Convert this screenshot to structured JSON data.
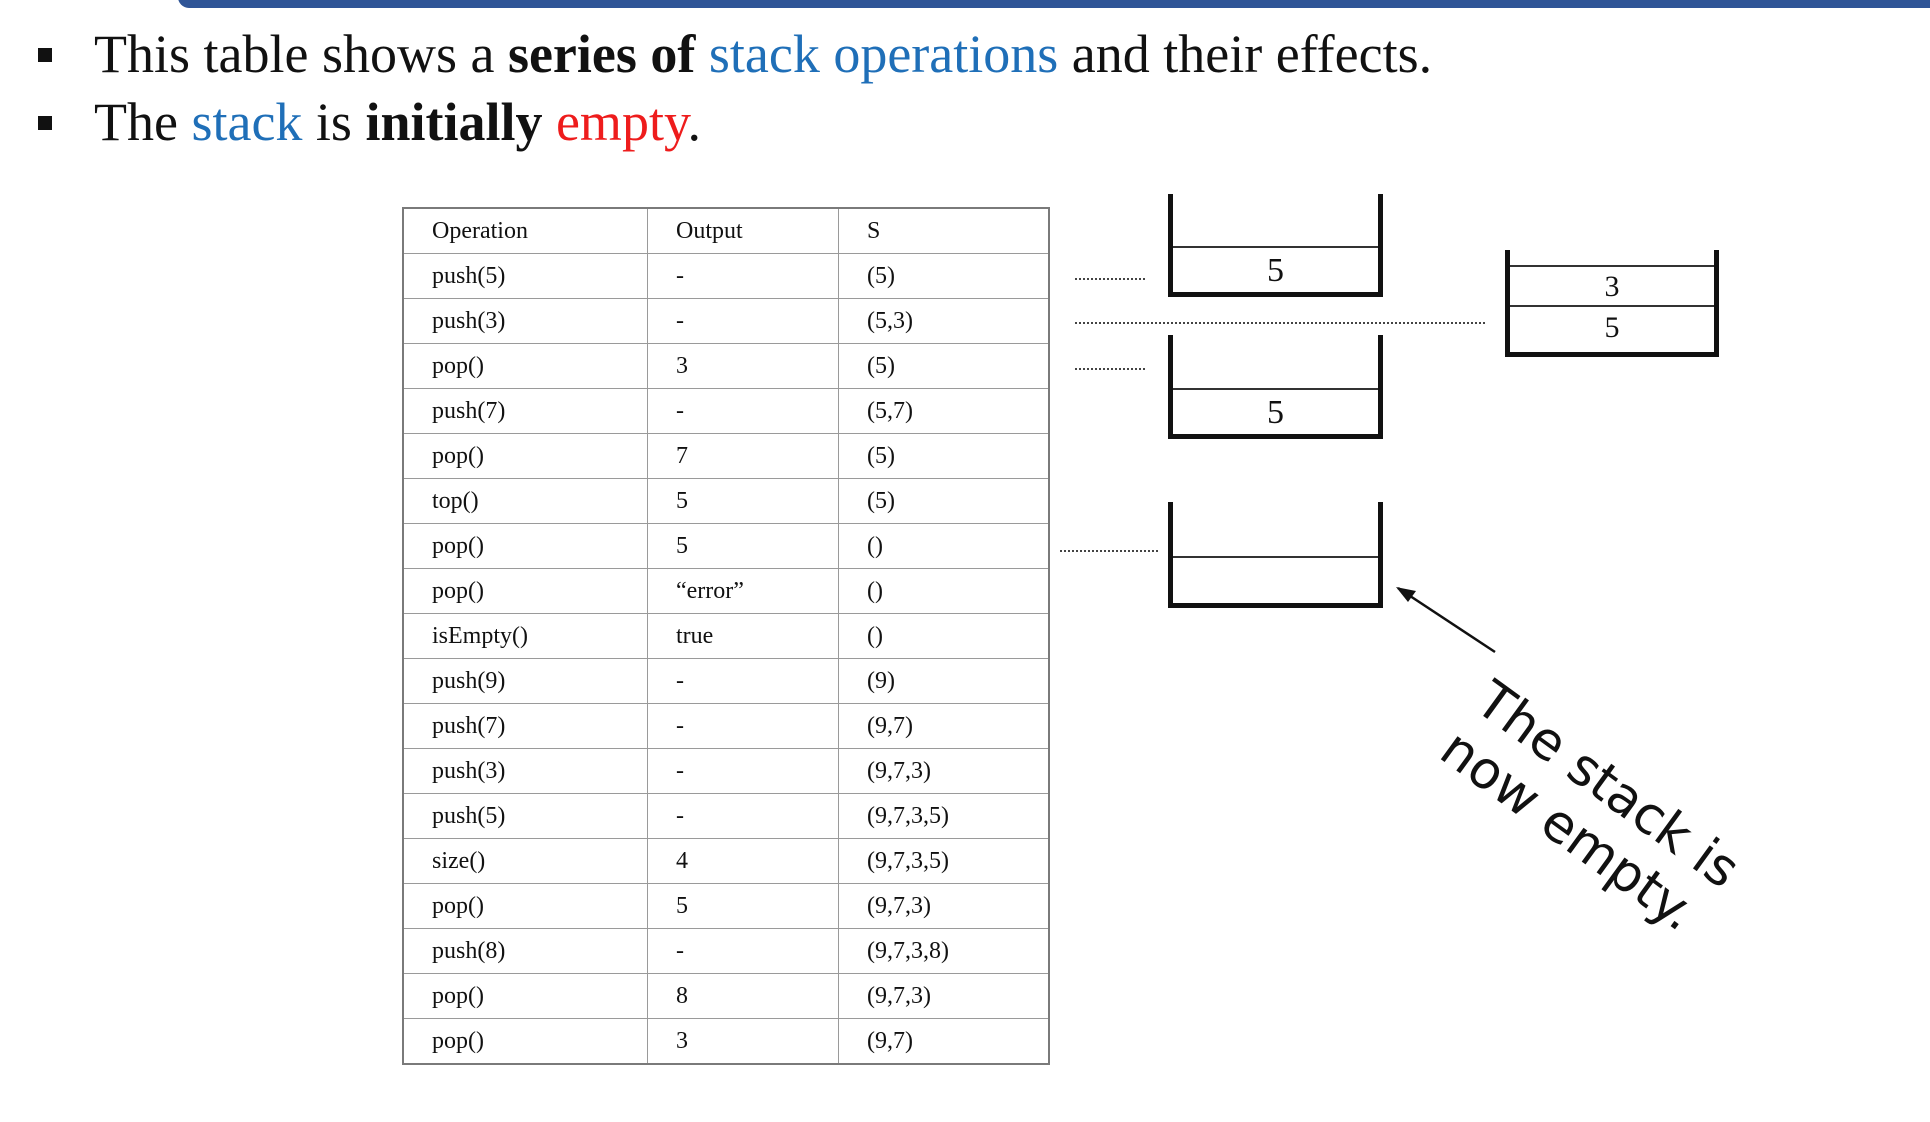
{
  "bullets": [
    {
      "parts": [
        {
          "text": "This table shows a ",
          "style": "plain"
        },
        {
          "text": "series of",
          "style": "bold"
        },
        {
          "text": " ",
          "style": "plain"
        },
        {
          "text": "stack operations",
          "style": "blue"
        },
        {
          "text": " and their effects.",
          "style": "plain"
        }
      ]
    },
    {
      "parts": [
        {
          "text": "The ",
          "style": "plain"
        },
        {
          "text": "stack",
          "style": "blue"
        },
        {
          "text": " is ",
          "style": "plain"
        },
        {
          "text": "initially",
          "style": "bold"
        },
        {
          "text": " ",
          "style": "plain"
        },
        {
          "text": "empty",
          "style": "red"
        },
        {
          "text": ".",
          "style": "plain"
        }
      ]
    }
  ],
  "table": {
    "headers": [
      "Operation",
      "Output",
      "S"
    ],
    "rows": [
      [
        "push(5)",
        "-",
        "(5)"
      ],
      [
        "push(3)",
        "-",
        "(5,3)"
      ],
      [
        "pop()",
        "3",
        "(5)"
      ],
      [
        "push(7)",
        "-",
        "(5,7)"
      ],
      [
        "pop()",
        "7",
        "(5)"
      ],
      [
        "top()",
        "5",
        "(5)"
      ],
      [
        "pop()",
        "5",
        "()"
      ],
      [
        "pop()",
        "“error”",
        "()"
      ],
      [
        "isEmpty()",
        "true",
        "()"
      ],
      [
        "push(9)",
        "-",
        "(9)"
      ],
      [
        "push(7)",
        "-",
        "(9,7)"
      ],
      [
        "push(3)",
        "-",
        "(9,7,3)"
      ],
      [
        "push(5)",
        "-",
        "(9,7,3,5)"
      ],
      [
        "size()",
        "4",
        "(9,7,3,5)"
      ],
      [
        "pop()",
        "5",
        "(9,7,3)"
      ],
      [
        "push(8)",
        "-",
        "(9,7,3,8)"
      ],
      [
        "pop()",
        "8",
        "(9,7,3)"
      ],
      [
        "pop()",
        "3",
        "(9,7)"
      ]
    ]
  },
  "diagrams": {
    "stack1": [
      "5"
    ],
    "stack2": [
      "3",
      "5"
    ],
    "stack3": [
      "5"
    ],
    "stack4": []
  },
  "annotation": {
    "line1": "The stack is",
    "line2": "now empty."
  },
  "colors": {
    "accent_blue": "#1f6fb8",
    "accent_red": "#ee1c1c",
    "topbar": "#2f5597"
  }
}
